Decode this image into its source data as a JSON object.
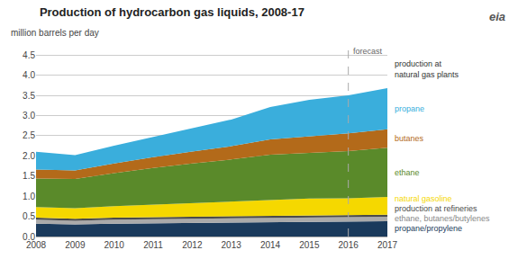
{
  "chart_data": {
    "type": "area",
    "stacked": true,
    "title": "Production of hydrocarbon gas liquids, 2008-17",
    "ylabel": "million barrels per day",
    "x": [
      2008,
      2009,
      2010,
      2011,
      2012,
      2013,
      2014,
      2015,
      2016,
      2017
    ],
    "xlim": [
      2008,
      2017
    ],
    "xticks": [
      2008,
      2009,
      2010,
      2011,
      2012,
      2013,
      2014,
      2015,
      2016,
      2017
    ],
    "ylim": [
      0,
      4.75
    ],
    "yticks": [
      {
        "value": 0,
        "label": "0.0"
      },
      0.5,
      {
        "value": 1,
        "label": "1.0"
      },
      1.5,
      {
        "value": 2,
        "label": "2.0"
      },
      2.5,
      {
        "value": 3,
        "label": "3.0"
      },
      3.5,
      {
        "value": 4,
        "label": "4.0"
      },
      4.5
    ],
    "grid": true,
    "series": [
      {
        "name": "propane/propylene",
        "color": "#1a3a5c",
        "values": [
          0.32,
          0.3,
          0.32,
          0.33,
          0.34,
          0.35,
          0.36,
          0.37,
          0.37,
          0.38
        ]
      },
      {
        "name": "ethane, butanes/butylenes",
        "color": "#aaaaaa",
        "values": [
          0.1,
          0.09,
          0.1,
          0.1,
          0.1,
          0.1,
          0.11,
          0.11,
          0.11,
          0.11
        ]
      },
      {
        "name": "production at refineries",
        "color": "#4a4a4a",
        "values": [
          0.05,
          0.05,
          0.05,
          0.05,
          0.05,
          0.05,
          0.05,
          0.05,
          0.05,
          0.05
        ]
      },
      {
        "name": "natural gasoline",
        "color": "#f5d800",
        "values": [
          0.26,
          0.26,
          0.28,
          0.31,
          0.34,
          0.36,
          0.39,
          0.41,
          0.42,
          0.44
        ]
      },
      {
        "name": "ethane",
        "color": "#5a8a2a",
        "values": [
          0.71,
          0.73,
          0.82,
          0.91,
          0.98,
          1.05,
          1.12,
          1.14,
          1.17,
          1.22
        ]
      },
      {
        "name": "butanes",
        "color": "#b36a1a",
        "values": [
          0.22,
          0.21,
          0.24,
          0.27,
          0.3,
          0.33,
          0.38,
          0.41,
          0.44,
          0.46
        ]
      },
      {
        "name": "propane",
        "color": "#3aaedc",
        "values": [
          0.44,
          0.38,
          0.44,
          0.5,
          0.58,
          0.66,
          0.8,
          0.9,
          0.94,
          1.02
        ]
      }
    ],
    "annotations": [
      {
        "text": "forecast",
        "x": 2016
      },
      {
        "text": "production at\nnatural gas plants",
        "y": 4.15
      },
      {
        "text": "eia"
      }
    ]
  }
}
